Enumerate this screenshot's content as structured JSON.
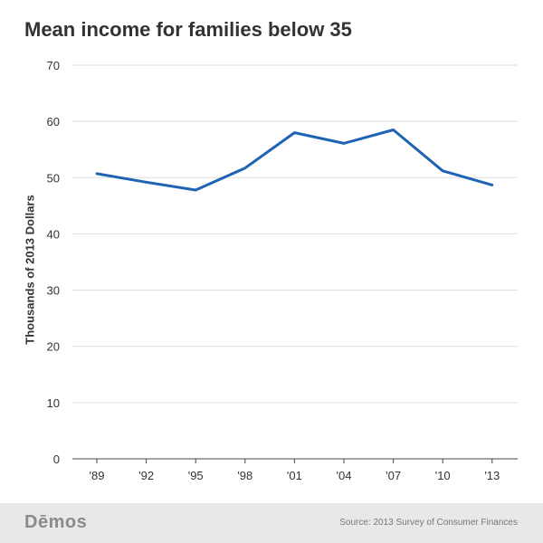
{
  "colors": {
    "line": "#1f63b5",
    "grid": "#dddddd",
    "axis": "#444444",
    "text": "#333333",
    "footer_bg": "#e8e8e8"
  },
  "chart_data": {
    "type": "line",
    "title": "Mean income for families below 35",
    "xlabel": "",
    "ylabel": "Thousands of 2013 Dollars",
    "categories": [
      "'89",
      "'92",
      "'95",
      "'98",
      "'01",
      "'04",
      "'07",
      "'10",
      "'13"
    ],
    "ylim": [
      0,
      70
    ],
    "yticks": [
      0,
      10,
      20,
      30,
      40,
      50,
      60,
      70
    ],
    "grid": true,
    "series": [
      {
        "values": [
          50.7,
          49.2,
          47.8,
          51.7,
          58.0,
          56.1,
          58.5,
          51.2,
          48.7
        ]
      }
    ]
  },
  "footer": {
    "logo": "Dēmos",
    "source": "Source: 2013 Survey of Consumer Finances"
  }
}
